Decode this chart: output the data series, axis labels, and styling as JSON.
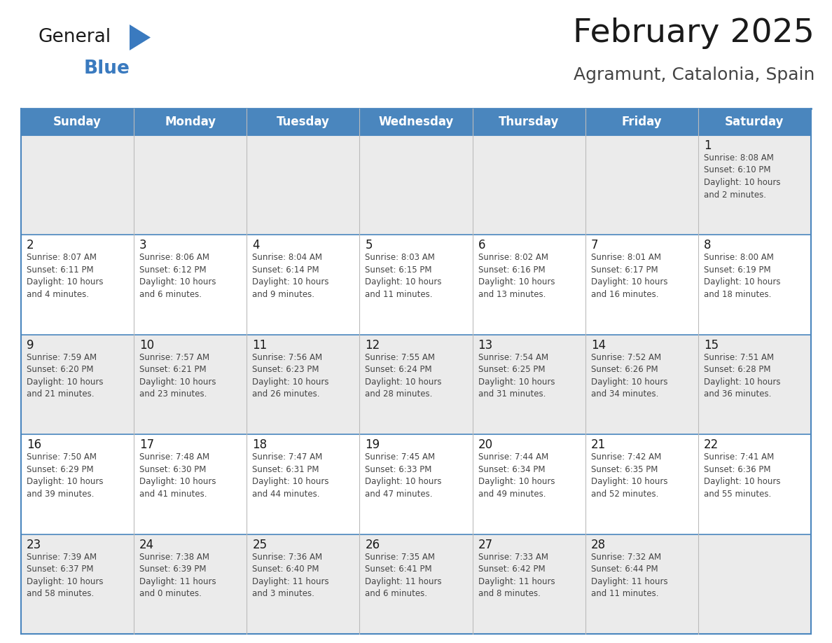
{
  "title": "February 2025",
  "subtitle": "Agramunt, Catalonia, Spain",
  "header_bg": "#4a86be",
  "header_text_color": "#ffffff",
  "day_names": [
    "Sunday",
    "Monday",
    "Tuesday",
    "Wednesday",
    "Thursday",
    "Friday",
    "Saturday"
  ],
  "bg_color": "#ffffff",
  "cell_bg_even": "#ebebeb",
  "cell_bg_odd": "#ffffff",
  "border_color": "#4a86be",
  "title_color": "#1a1a1a",
  "subtitle_color": "#444444",
  "day_num_color": "#1a1a1a",
  "text_color": "#444444",
  "logo_general_color": "#1a1a1a",
  "logo_blue_color": "#3a7abf",
  "logo_triangle_color": "#3a7abf",
  "weeks": [
    [
      {
        "day": null,
        "info": null
      },
      {
        "day": null,
        "info": null
      },
      {
        "day": null,
        "info": null
      },
      {
        "day": null,
        "info": null
      },
      {
        "day": null,
        "info": null
      },
      {
        "day": null,
        "info": null
      },
      {
        "day": 1,
        "info": "Sunrise: 8:08 AM\nSunset: 6:10 PM\nDaylight: 10 hours\nand 2 minutes."
      }
    ],
    [
      {
        "day": 2,
        "info": "Sunrise: 8:07 AM\nSunset: 6:11 PM\nDaylight: 10 hours\nand 4 minutes."
      },
      {
        "day": 3,
        "info": "Sunrise: 8:06 AM\nSunset: 6:12 PM\nDaylight: 10 hours\nand 6 minutes."
      },
      {
        "day": 4,
        "info": "Sunrise: 8:04 AM\nSunset: 6:14 PM\nDaylight: 10 hours\nand 9 minutes."
      },
      {
        "day": 5,
        "info": "Sunrise: 8:03 AM\nSunset: 6:15 PM\nDaylight: 10 hours\nand 11 minutes."
      },
      {
        "day": 6,
        "info": "Sunrise: 8:02 AM\nSunset: 6:16 PM\nDaylight: 10 hours\nand 13 minutes."
      },
      {
        "day": 7,
        "info": "Sunrise: 8:01 AM\nSunset: 6:17 PM\nDaylight: 10 hours\nand 16 minutes."
      },
      {
        "day": 8,
        "info": "Sunrise: 8:00 AM\nSunset: 6:19 PM\nDaylight: 10 hours\nand 18 minutes."
      }
    ],
    [
      {
        "day": 9,
        "info": "Sunrise: 7:59 AM\nSunset: 6:20 PM\nDaylight: 10 hours\nand 21 minutes."
      },
      {
        "day": 10,
        "info": "Sunrise: 7:57 AM\nSunset: 6:21 PM\nDaylight: 10 hours\nand 23 minutes."
      },
      {
        "day": 11,
        "info": "Sunrise: 7:56 AM\nSunset: 6:23 PM\nDaylight: 10 hours\nand 26 minutes."
      },
      {
        "day": 12,
        "info": "Sunrise: 7:55 AM\nSunset: 6:24 PM\nDaylight: 10 hours\nand 28 minutes."
      },
      {
        "day": 13,
        "info": "Sunrise: 7:54 AM\nSunset: 6:25 PM\nDaylight: 10 hours\nand 31 minutes."
      },
      {
        "day": 14,
        "info": "Sunrise: 7:52 AM\nSunset: 6:26 PM\nDaylight: 10 hours\nand 34 minutes."
      },
      {
        "day": 15,
        "info": "Sunrise: 7:51 AM\nSunset: 6:28 PM\nDaylight: 10 hours\nand 36 minutes."
      }
    ],
    [
      {
        "day": 16,
        "info": "Sunrise: 7:50 AM\nSunset: 6:29 PM\nDaylight: 10 hours\nand 39 minutes."
      },
      {
        "day": 17,
        "info": "Sunrise: 7:48 AM\nSunset: 6:30 PM\nDaylight: 10 hours\nand 41 minutes."
      },
      {
        "day": 18,
        "info": "Sunrise: 7:47 AM\nSunset: 6:31 PM\nDaylight: 10 hours\nand 44 minutes."
      },
      {
        "day": 19,
        "info": "Sunrise: 7:45 AM\nSunset: 6:33 PM\nDaylight: 10 hours\nand 47 minutes."
      },
      {
        "day": 20,
        "info": "Sunrise: 7:44 AM\nSunset: 6:34 PM\nDaylight: 10 hours\nand 49 minutes."
      },
      {
        "day": 21,
        "info": "Sunrise: 7:42 AM\nSunset: 6:35 PM\nDaylight: 10 hours\nand 52 minutes."
      },
      {
        "day": 22,
        "info": "Sunrise: 7:41 AM\nSunset: 6:36 PM\nDaylight: 10 hours\nand 55 minutes."
      }
    ],
    [
      {
        "day": 23,
        "info": "Sunrise: 7:39 AM\nSunset: 6:37 PM\nDaylight: 10 hours\nand 58 minutes."
      },
      {
        "day": 24,
        "info": "Sunrise: 7:38 AM\nSunset: 6:39 PM\nDaylight: 11 hours\nand 0 minutes."
      },
      {
        "day": 25,
        "info": "Sunrise: 7:36 AM\nSunset: 6:40 PM\nDaylight: 11 hours\nand 3 minutes."
      },
      {
        "day": 26,
        "info": "Sunrise: 7:35 AM\nSunset: 6:41 PM\nDaylight: 11 hours\nand 6 minutes."
      },
      {
        "day": 27,
        "info": "Sunrise: 7:33 AM\nSunset: 6:42 PM\nDaylight: 11 hours\nand 8 minutes."
      },
      {
        "day": 28,
        "info": "Sunrise: 7:32 AM\nSunset: 6:44 PM\nDaylight: 11 hours\nand 11 minutes."
      },
      {
        "day": null,
        "info": null
      }
    ]
  ]
}
